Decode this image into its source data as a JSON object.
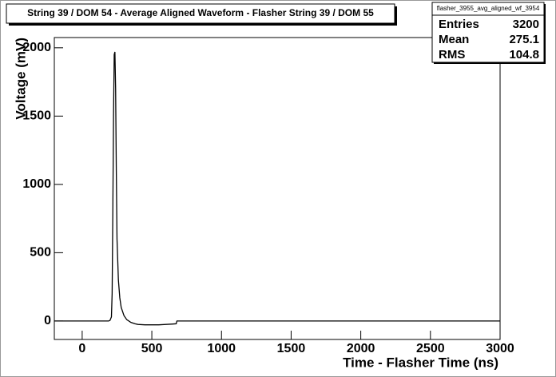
{
  "chart_data": {
    "type": "line",
    "title": "String 39 / DOM 54 - Average Aligned Waveform - Flasher String 39 / DOM 55",
    "x_label": "Time - Flasher Time (ns)",
    "y_label": "Voltage (mV)",
    "x": [
      -200,
      190,
      200,
      210,
      215,
      220,
      225,
      230,
      235,
      240,
      245,
      250,
      260,
      270,
      280,
      300,
      320,
      350,
      380,
      400,
      450,
      500,
      550,
      600,
      650,
      675,
      680,
      3000
    ],
    "series": [
      {
        "color": "#000000",
        "values": [
          0,
          0,
          5,
          30,
          200,
          800,
          1500,
          1950,
          1970,
          1700,
          1100,
          600,
          300,
          170,
          100,
          40,
          10,
          -10,
          -20,
          -25,
          -28,
          -28,
          -28,
          -25,
          -22,
          -20,
          0,
          0
        ]
      }
    ],
    "xlim": [
      -200,
      3000
    ],
    "ylim": [
      -135,
      2075
    ],
    "xticks": [
      0,
      500,
      1000,
      1500,
      2000,
      2500,
      3000
    ],
    "yticks": [
      0,
      500,
      1000,
      1500,
      2000
    ],
    "stats": {
      "title": "flasher_3955_avg_aligned_wf_3954",
      "rows": [
        [
          "Entries",
          3200
        ],
        [
          "Mean",
          275.1
        ],
        [
          "RMS",
          104.8
        ]
      ]
    }
  }
}
